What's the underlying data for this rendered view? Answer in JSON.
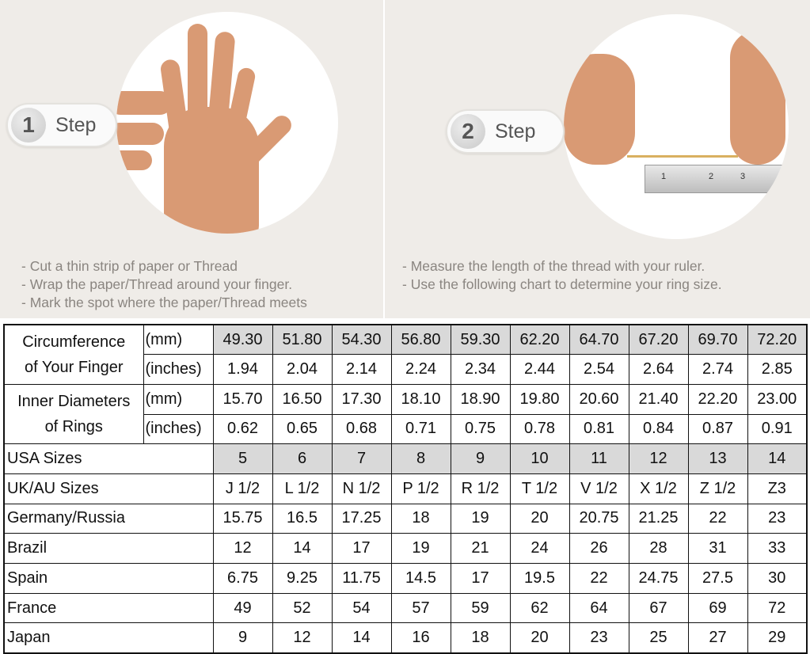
{
  "steps": [
    {
      "number": "1",
      "label": "Step",
      "instructions": [
        "- Cut a thin strip of paper or Thread",
        "- Wrap the paper/Thread around your finger.",
        "- Mark the spot where the paper/Thread meets"
      ]
    },
    {
      "number": "2",
      "label": "Step",
      "instructions": [
        "- Measure the length of the thread with your ruler.",
        "- Use the following chart to determine your ring size."
      ]
    }
  ],
  "ruler_marks": [
    "1",
    "2",
    "3"
  ],
  "table": {
    "circumference": {
      "label_1": "Circumference",
      "label_2": "of Your Finger",
      "mm_unit": "(mm)",
      "in_unit": "(inches)",
      "mm": [
        "49.30",
        "51.80",
        "54.30",
        "56.80",
        "59.30",
        "62.20",
        "64.70",
        "67.20",
        "69.70",
        "72.20"
      ],
      "inches": [
        "1.94",
        "2.04",
        "2.14",
        "2.24",
        "2.34",
        "2.44",
        "2.54",
        "2.64",
        "2.74",
        "2.85"
      ]
    },
    "diameter": {
      "label_1": "Inner Diameters",
      "label_2": "of Rings",
      "mm_unit": "(mm)",
      "in_unit": "(inches)",
      "mm": [
        "15.70",
        "16.50",
        "17.30",
        "18.10",
        "18.90",
        "19.80",
        "20.60",
        "21.40",
        "22.20",
        "23.00"
      ],
      "inches": [
        "0.62",
        "0.65",
        "0.68",
        "0.71",
        "0.75",
        "0.78",
        "0.81",
        "0.84",
        "0.87",
        "0.91"
      ]
    },
    "rows": [
      {
        "label": "USA Sizes",
        "values": [
          "5",
          "6",
          "7",
          "8",
          "9",
          "10",
          "11",
          "12",
          "13",
          "14"
        ]
      },
      {
        "label": "UK/AU Sizes",
        "values": [
          "J 1/2",
          "L 1/2",
          "N 1/2",
          "P 1/2",
          "R 1/2",
          "T 1/2",
          "V 1/2",
          "X 1/2",
          "Z 1/2",
          "Z3"
        ]
      },
      {
        "label": "Germany/Russia",
        "values": [
          "15.75",
          "16.5",
          "17.25",
          "18",
          "19",
          "20",
          "20.75",
          "21.25",
          "22",
          "23"
        ]
      },
      {
        "label": "Brazil",
        "values": [
          "12",
          "14",
          "17",
          "19",
          "21",
          "24",
          "26",
          "28",
          "31",
          "33"
        ]
      },
      {
        "label": "Spain",
        "values": [
          "6.75",
          "9.25",
          "11.75",
          "14.5",
          "17",
          "19.5",
          "22",
          "24.75",
          "27.5",
          "30"
        ]
      },
      {
        "label": "France",
        "values": [
          "49",
          "52",
          "54",
          "57",
          "59",
          "62",
          "64",
          "67",
          "69",
          "72"
        ]
      },
      {
        "label": "Japan",
        "values": [
          "9",
          "12",
          "14",
          "16",
          "18",
          "20",
          "23",
          "25",
          "27",
          "29"
        ]
      }
    ]
  },
  "colors": {
    "highlight": "#d9d9d9",
    "background": "#efece8"
  }
}
